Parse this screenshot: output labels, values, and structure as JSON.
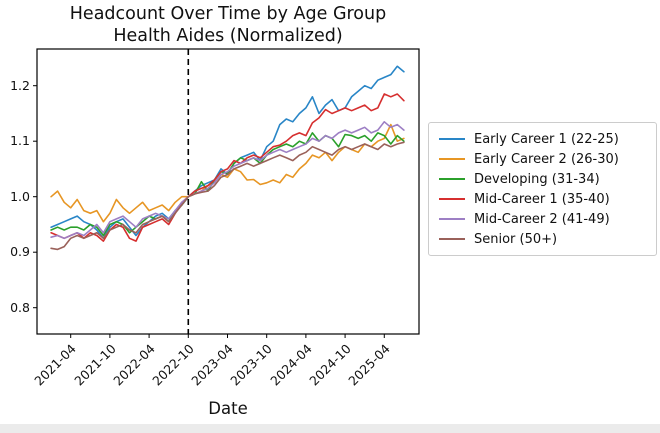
{
  "chart_data": {
    "type": "line",
    "title": "Headcount Over Time by Age Group",
    "subtitle": "Health Aides (Normalized)",
    "xlabel": "Date",
    "ylabel": "",
    "grid": false,
    "legend_position": "center right",
    "ylim": [
      0.75,
      1.26
    ],
    "yticks": [
      "0.8",
      "0.9",
      "1.0",
      "1.1",
      "1.2"
    ],
    "xticks": [
      "2021-04",
      "2021-10",
      "2022-04",
      "2022-10",
      "2023-04",
      "2023-10",
      "2024-04",
      "2024-10",
      "2025-04"
    ],
    "vline": {
      "x": "2022-10",
      "style": "dashed",
      "color": "#000000"
    },
    "x": [
      "2021-01",
      "2021-02",
      "2021-03",
      "2021-04",
      "2021-05",
      "2021-06",
      "2021-07",
      "2021-08",
      "2021-09",
      "2021-10",
      "2021-11",
      "2021-12",
      "2022-01",
      "2022-02",
      "2022-03",
      "2022-04",
      "2022-05",
      "2022-06",
      "2022-07",
      "2022-08",
      "2022-09",
      "2022-10",
      "2022-11",
      "2022-12",
      "2023-01",
      "2023-02",
      "2023-03",
      "2023-04",
      "2023-05",
      "2023-06",
      "2023-07",
      "2023-08",
      "2023-09",
      "2023-10",
      "2023-11",
      "2023-12",
      "2024-01",
      "2024-02",
      "2024-03",
      "2024-04",
      "2024-05",
      "2024-06",
      "2024-07",
      "2024-08",
      "2024-09",
      "2024-10",
      "2024-11",
      "2024-12",
      "2025-01",
      "2025-02",
      "2025-03",
      "2025-04",
      "2025-05",
      "2025-06",
      "2025-07"
    ],
    "series": [
      {
        "name": "Early Career 1 (22-25)",
        "color": "#2986c7",
        "values": [
          0.945,
          0.95,
          0.955,
          0.96,
          0.965,
          0.955,
          0.95,
          0.94,
          0.925,
          0.945,
          0.955,
          0.96,
          0.945,
          0.93,
          0.945,
          0.955,
          0.965,
          0.97,
          0.96,
          0.975,
          0.985,
          1.0,
          1.01,
          1.02,
          1.025,
          1.03,
          1.05,
          1.04,
          1.06,
          1.07,
          1.075,
          1.08,
          1.065,
          1.09,
          1.1,
          1.13,
          1.14,
          1.135,
          1.15,
          1.16,
          1.18,
          1.15,
          1.165,
          1.175,
          1.155,
          1.16,
          1.18,
          1.19,
          1.2,
          1.195,
          1.21,
          1.215,
          1.22,
          1.235,
          1.225
        ]
      },
      {
        "name": "Early Career 2 (26-30)",
        "color": "#e79624",
        "values": [
          1.0,
          1.01,
          0.99,
          0.98,
          0.995,
          0.975,
          0.97,
          0.975,
          0.955,
          0.97,
          0.995,
          0.98,
          0.97,
          0.98,
          0.99,
          0.975,
          0.98,
          0.985,
          0.975,
          0.99,
          1.0,
          1.0,
          1.005,
          1.01,
          1.02,
          1.025,
          1.04,
          1.035,
          1.05,
          1.045,
          1.03,
          1.031,
          1.022,
          1.025,
          1.03,
          1.025,
          1.04,
          1.035,
          1.05,
          1.06,
          1.075,
          1.07,
          1.08,
          1.065,
          1.08,
          1.09,
          1.085,
          1.08,
          1.095,
          1.09,
          1.1,
          1.105,
          1.13,
          1.1,
          1.105
        ]
      },
      {
        "name": "Developing (31-34)",
        "color": "#2ba02b",
        "values": [
          0.94,
          0.945,
          0.94,
          0.945,
          0.945,
          0.94,
          0.95,
          0.945,
          0.93,
          0.95,
          0.955,
          0.95,
          0.935,
          0.945,
          0.955,
          0.965,
          0.96,
          0.965,
          0.955,
          0.975,
          0.985,
          1.0,
          1.005,
          1.027,
          1.01,
          1.03,
          1.045,
          1.042,
          1.06,
          1.07,
          1.065,
          1.07,
          1.06,
          1.075,
          1.085,
          1.09,
          1.095,
          1.09,
          1.1,
          1.095,
          1.115,
          1.1,
          1.11,
          1.105,
          1.09,
          1.112,
          1.11,
          1.105,
          1.11,
          1.1,
          1.115,
          1.11,
          1.095,
          1.11,
          1.1
        ]
      },
      {
        "name": "Mid-Career 1 (35-40)",
        "color": "#d62f2f",
        "values": [
          0.935,
          0.93,
          0.925,
          0.93,
          0.935,
          0.925,
          0.935,
          0.93,
          0.92,
          0.94,
          0.95,
          0.945,
          0.925,
          0.92,
          0.945,
          0.95,
          0.955,
          0.96,
          0.95,
          0.97,
          0.99,
          1.0,
          1.01,
          1.015,
          1.02,
          1.03,
          1.045,
          1.05,
          1.065,
          1.06,
          1.07,
          1.075,
          1.07,
          1.08,
          1.09,
          1.093,
          1.1,
          1.11,
          1.115,
          1.11,
          1.133,
          1.142,
          1.157,
          1.15,
          1.155,
          1.16,
          1.155,
          1.16,
          1.165,
          1.155,
          1.16,
          1.185,
          1.18,
          1.185,
          1.173
        ]
      },
      {
        "name": "Mid-Career 2 (41-49)",
        "color": "#9d7fc4",
        "values": [
          0.927,
          0.93,
          0.925,
          0.93,
          0.935,
          0.93,
          0.94,
          0.95,
          0.935,
          0.955,
          0.96,
          0.965,
          0.955,
          0.945,
          0.96,
          0.965,
          0.97,
          0.965,
          0.96,
          0.975,
          0.99,
          1.0,
          1.005,
          1.01,
          1.015,
          1.025,
          1.04,
          1.045,
          1.055,
          1.06,
          1.065,
          1.07,
          1.065,
          1.075,
          1.08,
          1.085,
          1.08,
          1.085,
          1.09,
          1.095,
          1.105,
          1.1,
          1.11,
          1.105,
          1.115,
          1.12,
          1.115,
          1.12,
          1.125,
          1.115,
          1.12,
          1.135,
          1.125,
          1.13,
          1.12
        ]
      },
      {
        "name": "Senior (50+)",
        "color": "#9a615a",
        "values": [
          0.907,
          0.905,
          0.91,
          0.925,
          0.93,
          0.925,
          0.93,
          0.935,
          0.925,
          0.94,
          0.945,
          0.95,
          0.94,
          0.935,
          0.95,
          0.955,
          0.96,
          0.965,
          0.955,
          0.97,
          0.985,
          1.0,
          1.005,
          1.008,
          1.01,
          1.02,
          1.035,
          1.04,
          1.05,
          1.055,
          1.06,
          1.055,
          1.06,
          1.065,
          1.07,
          1.075,
          1.07,
          1.065,
          1.075,
          1.08,
          1.09,
          1.085,
          1.08,
          1.075,
          1.085,
          1.09,
          1.085,
          1.09,
          1.095,
          1.09,
          1.085,
          1.095,
          1.09,
          1.095,
          1.098
        ]
      }
    ]
  }
}
